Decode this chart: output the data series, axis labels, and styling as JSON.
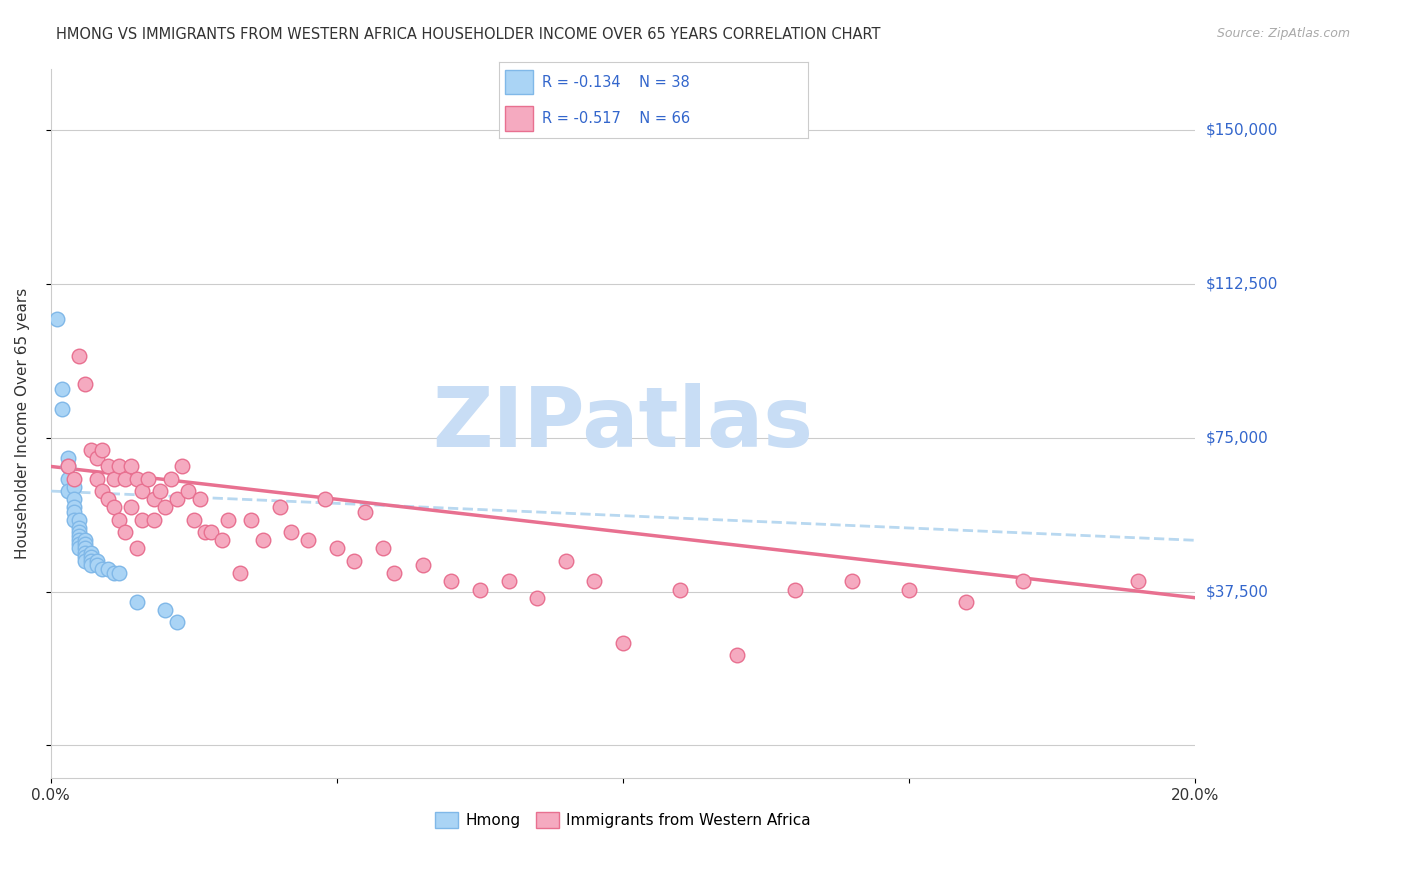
{
  "title": "HMONG VS IMMIGRANTS FROM WESTERN AFRICA HOUSEHOLDER INCOME OVER 65 YEARS CORRELATION CHART",
  "source": "Source: ZipAtlas.com",
  "ylabel": "Householder Income Over 65 years",
  "xlim": [
    0.0,
    0.2
  ],
  "ylim": [
    -8000,
    165000
  ],
  "yticks": [
    0,
    37500,
    75000,
    112500,
    150000
  ],
  "ytick_labels": [
    "",
    "$37,500",
    "$75,000",
    "$112,500",
    "$150,000"
  ],
  "xticks": [
    0.0,
    0.05,
    0.1,
    0.15,
    0.2
  ],
  "xtick_labels": [
    "0.0%",
    "",
    "",
    "",
    "20.0%"
  ],
  "hmong_color": "#aad4f5",
  "hmong_edge_color": "#80b8e8",
  "wa_color": "#f5aac0",
  "wa_edge_color": "#e87090",
  "trend_hmong_color": "#b8d8f0",
  "trend_wa_color": "#e87090",
  "legend_r_hmong": "R = -0.134",
  "legend_n_hmong": "N = 38",
  "legend_r_wa": "R = -0.517",
  "legend_n_wa": "N = 66",
  "watermark": "ZIPatlas",
  "watermark_color": "#c8ddf5",
  "hmong_x": [
    0.001,
    0.002,
    0.002,
    0.003,
    0.003,
    0.003,
    0.003,
    0.004,
    0.004,
    0.004,
    0.004,
    0.004,
    0.005,
    0.005,
    0.005,
    0.005,
    0.005,
    0.005,
    0.005,
    0.006,
    0.006,
    0.006,
    0.006,
    0.006,
    0.006,
    0.007,
    0.007,
    0.007,
    0.007,
    0.008,
    0.008,
    0.009,
    0.01,
    0.011,
    0.012,
    0.015,
    0.02,
    0.022
  ],
  "hmong_y": [
    104000,
    87000,
    82000,
    70000,
    68000,
    65000,
    62000,
    63000,
    60000,
    58000,
    57000,
    55000,
    55000,
    53000,
    52000,
    51000,
    50000,
    49000,
    48000,
    50000,
    49000,
    48000,
    47000,
    46000,
    45000,
    47000,
    46000,
    45000,
    44000,
    45000,
    44000,
    43000,
    43000,
    42000,
    42000,
    35000,
    33000,
    30000
  ],
  "wa_x": [
    0.003,
    0.004,
    0.005,
    0.006,
    0.007,
    0.008,
    0.008,
    0.009,
    0.009,
    0.01,
    0.01,
    0.011,
    0.011,
    0.012,
    0.012,
    0.013,
    0.013,
    0.014,
    0.014,
    0.015,
    0.015,
    0.016,
    0.016,
    0.017,
    0.018,
    0.018,
    0.019,
    0.02,
    0.021,
    0.022,
    0.023,
    0.024,
    0.025,
    0.026,
    0.027,
    0.028,
    0.03,
    0.031,
    0.033,
    0.035,
    0.037,
    0.04,
    0.042,
    0.045,
    0.048,
    0.05,
    0.053,
    0.055,
    0.058,
    0.06,
    0.065,
    0.07,
    0.075,
    0.08,
    0.085,
    0.09,
    0.095,
    0.1,
    0.11,
    0.12,
    0.13,
    0.14,
    0.15,
    0.16,
    0.17,
    0.19
  ],
  "wa_y": [
    68000,
    65000,
    95000,
    88000,
    72000,
    70000,
    65000,
    72000,
    62000,
    68000,
    60000,
    65000,
    58000,
    68000,
    55000,
    65000,
    52000,
    68000,
    58000,
    65000,
    48000,
    62000,
    55000,
    65000,
    60000,
    55000,
    62000,
    58000,
    65000,
    60000,
    68000,
    62000,
    55000,
    60000,
    52000,
    52000,
    50000,
    55000,
    42000,
    55000,
    50000,
    58000,
    52000,
    50000,
    60000,
    48000,
    45000,
    57000,
    48000,
    42000,
    44000,
    40000,
    38000,
    40000,
    36000,
    45000,
    40000,
    25000,
    38000,
    22000,
    38000,
    40000,
    38000,
    35000,
    40000,
    40000
  ],
  "hmong_trend_x": [
    0.0,
    0.2
  ],
  "hmong_trend_y": [
    62000,
    50000
  ],
  "wa_trend_x": [
    0.0,
    0.2
  ],
  "wa_trend_y": [
    68000,
    36000
  ]
}
